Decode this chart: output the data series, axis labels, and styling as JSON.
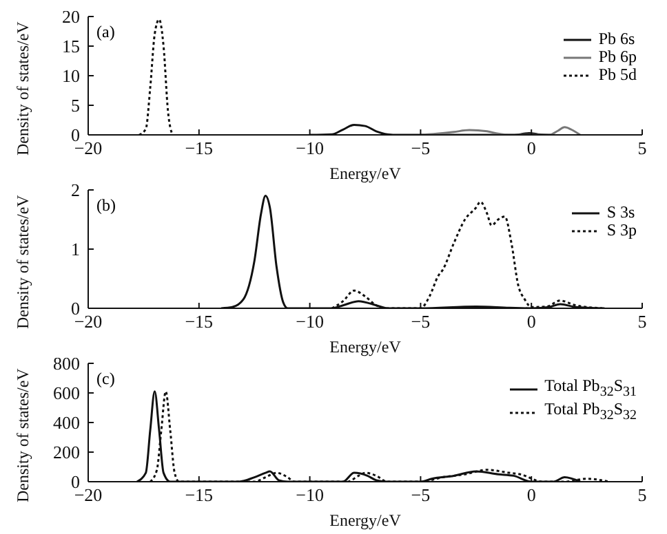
{
  "chart_data": [
    {
      "type": "line",
      "title": "(a)",
      "xlabel": "Energy/eV",
      "ylabel": "Density of states/eV",
      "xlim": [
        -20,
        5
      ],
      "xticks": [
        -20,
        -15,
        -10,
        -5,
        0,
        5
      ],
      "ylim": [
        0,
        20
      ],
      "yticks": [
        0,
        5,
        10,
        15,
        20
      ],
      "legend": "top right",
      "marker": "none",
      "grid": false,
      "series": [
        {
          "name": "Pb 6s",
          "color": "#111111",
          "line_style": "solid",
          "x": [
            -10,
            -9,
            -8.5,
            -8,
            -7.5,
            -7,
            -6.5,
            -6,
            -1,
            -0.5,
            -0.1,
            0.3,
            1
          ],
          "values": [
            0,
            0.1,
            0.9,
            1.7,
            1.5,
            0.6,
            0.1,
            0,
            0,
            0.1,
            0.3,
            0.1,
            0
          ]
        },
        {
          "name": "Pb 6p",
          "color": "#777777",
          "line_style": "solid",
          "x": [
            -5,
            -4,
            -3.5,
            -2.8,
            -2,
            -1.5,
            -1,
            0.8,
            1.2,
            1.5,
            1.8,
            2.2
          ],
          "values": [
            0,
            0.3,
            0.5,
            0.8,
            0.6,
            0.2,
            0,
            0,
            0.7,
            1.3,
            0.9,
            0
          ]
        },
        {
          "name": "Pb 5d",
          "color": "#111111",
          "line_style": "dotted",
          "x": [
            -17.7,
            -17.4,
            -17.2,
            -17,
            -16.8,
            -16.6,
            -16.4,
            -16.2
          ],
          "values": [
            0,
            1,
            8,
            17,
            19.5,
            15,
            4,
            0
          ]
        }
      ]
    },
    {
      "type": "line",
      "title": "(b)",
      "xlabel": "Energy/eV",
      "ylabel": "Density of states/eV",
      "xlim": [
        -20,
        5
      ],
      "xticks": [
        -20,
        -15,
        -10,
        -5,
        0,
        5
      ],
      "ylim": [
        0,
        2
      ],
      "yticks": [
        0,
        1,
        2
      ],
      "legend": "top right",
      "marker": "none",
      "grid": false,
      "series": [
        {
          "name": "S 3s",
          "color": "#111111",
          "line_style": "solid",
          "x": [
            -14,
            -13.5,
            -13,
            -12.5,
            -12.2,
            -12,
            -11.8,
            -11.5,
            -11.2,
            -11,
            -9,
            -8.5,
            -7.8,
            -7,
            -6.5,
            -5,
            -2.5,
            -1,
            0,
            0.8,
            1.3,
            2,
            3.3
          ],
          "values": [
            0,
            0.02,
            0.15,
            0.8,
            1.6,
            1.9,
            1.7,
            0.7,
            0.1,
            0,
            0,
            0.05,
            0.12,
            0.05,
            0,
            0,
            0.03,
            0.01,
            0,
            0.02,
            0.07,
            0.02,
            0
          ]
        },
        {
          "name": "S 3p",
          "color": "#111111",
          "line_style": "dotted",
          "x": [
            -9,
            -8.5,
            -8,
            -7.5,
            -7,
            -6.5,
            -5,
            -4.6,
            -4.2,
            -4,
            -3.5,
            -3,
            -2.5,
            -2.3,
            -2,
            -1.8,
            -1.5,
            -1.2,
            -0.9,
            -0.6,
            -0.3,
            0,
            0.7,
            1.3,
            2,
            3.2
          ],
          "values": [
            0,
            0.12,
            0.3,
            0.2,
            0.05,
            0,
            0,
            0.2,
            0.55,
            0.65,
            1.1,
            1.5,
            1.7,
            1.8,
            1.6,
            1.4,
            1.5,
            1.55,
            1.1,
            0.4,
            0.15,
            0.02,
            0.03,
            0.13,
            0.05,
            0
          ]
        }
      ]
    },
    {
      "type": "line",
      "title": "(c)",
      "xlabel": "Energy/eV",
      "ylabel": "Density of states/eV",
      "xlim": [
        -20,
        5
      ],
      "xticks": [
        -20,
        -15,
        -10,
        -5,
        0,
        5
      ],
      "ylim": [
        0,
        800
      ],
      "yticks": [
        0,
        200,
        400,
        600,
        800
      ],
      "legend": "top right",
      "marker": "none",
      "grid": false,
      "series": [
        {
          "name": "Total Pb$_{32}$S$_{31}$",
          "color": "#111111",
          "line_style": "solid",
          "x": [
            -17.8,
            -17.4,
            -17.2,
            -17,
            -16.8,
            -16.6,
            -16.3,
            -13.2,
            -12.5,
            -12,
            -11.8,
            -11.4,
            -11,
            -8.5,
            -8,
            -7.4,
            -7,
            -6.5,
            -5,
            -4.5,
            -3.5,
            -2.5,
            -1.5,
            -0.8,
            0,
            0.5,
            1,
            1.5,
            2.2
          ],
          "values": [
            0,
            60,
            350,
            610,
            350,
            60,
            0,
            0,
            30,
            60,
            70,
            10,
            0,
            0,
            60,
            40,
            10,
            0,
            0,
            20,
            40,
            70,
            50,
            40,
            0,
            0,
            0,
            30,
            0
          ]
        },
        {
          "name": "Total Pb$_{32}$S$_{32}$",
          "color": "#111111",
          "line_style": "dotted",
          "x": [
            -17.2,
            -16.9,
            -16.7,
            -16.5,
            -16.3,
            -16.1,
            -15.9,
            -12.5,
            -12,
            -11.5,
            -11,
            -10.7,
            -8.3,
            -7.8,
            -7.5,
            -7,
            -6.5,
            -5,
            -4,
            -3,
            -2,
            -1,
            -0.5,
            0.5,
            1.5,
            2.5,
            3.5
          ],
          "values": [
            0,
            80,
            350,
            610,
            350,
            60,
            0,
            0,
            30,
            60,
            30,
            0,
            0,
            40,
            60,
            40,
            0,
            0,
            30,
            50,
            80,
            60,
            50,
            0,
            0,
            20,
            0
          ]
        }
      ]
    }
  ]
}
